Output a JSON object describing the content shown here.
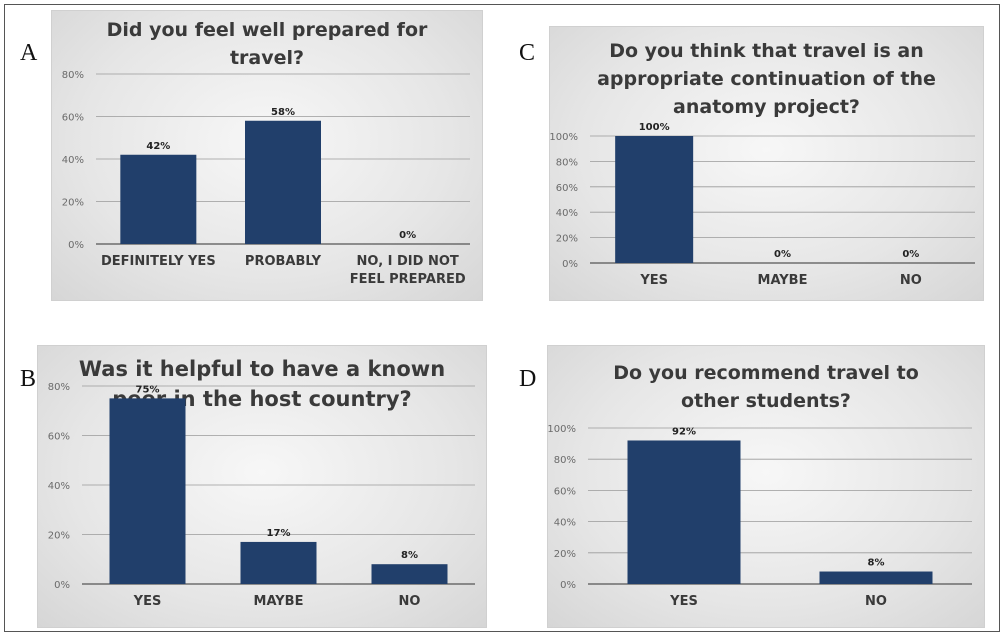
{
  "panel_letters": [
    "A",
    "C",
    "B",
    "D"
  ],
  "colors": {
    "bar": "#213f6b",
    "grid": "#9a9a9a",
    "axis": "#555555"
  },
  "chart_data": [
    {
      "id": "A",
      "type": "bar",
      "title": [
        "Did you feel well prepared for",
        "travel?"
      ],
      "categories": [
        [
          "DEFINITELY YES"
        ],
        [
          "PROBABLY"
        ],
        [
          "NO, I DID NOT",
          "FEEL PREPARED"
        ]
      ],
      "values": [
        42,
        58,
        0
      ],
      "value_labels": [
        "42%",
        "58%",
        "0%"
      ],
      "yticks": [
        "0%",
        "20%",
        "40%",
        "60%",
        "80%"
      ],
      "ylim": [
        0,
        80
      ],
      "grid": true
    },
    {
      "id": "C",
      "type": "bar",
      "title": [
        "Do you think that travel is an",
        "appropriate continuation of the",
        "anatomy project?"
      ],
      "categories": [
        [
          "YES"
        ],
        [
          "MAYBE"
        ],
        [
          "NO"
        ]
      ],
      "values": [
        100,
        0,
        0
      ],
      "value_labels": [
        "100%",
        "0%",
        "0%"
      ],
      "yticks": [
        "0%",
        "20%",
        "40%",
        "60%",
        "80%",
        "100%"
      ],
      "ylim": [
        0,
        100
      ],
      "grid": true
    },
    {
      "id": "B",
      "type": "bar",
      "title": [
        "Was it helpful to have a known",
        "peer in the host country?"
      ],
      "categories": [
        [
          "YES"
        ],
        [
          "MAYBE"
        ],
        [
          "NO"
        ]
      ],
      "values": [
        75,
        17,
        8
      ],
      "value_labels": [
        "75%",
        "17%",
        "8%"
      ],
      "yticks": [
        "0%",
        "20%",
        "40%",
        "60%",
        "80%"
      ],
      "ylim": [
        0,
        80
      ],
      "grid": true
    },
    {
      "id": "D",
      "type": "bar",
      "title": [
        "Do you recommend travel to",
        "other students?"
      ],
      "categories": [
        [
          "YES"
        ],
        [
          "NO"
        ]
      ],
      "values": [
        92,
        8
      ],
      "value_labels": [
        "92%",
        "8%"
      ],
      "yticks": [
        "0%",
        "20%",
        "40%",
        "60%",
        "80%",
        "100%"
      ],
      "ylim": [
        0,
        100
      ],
      "grid": true
    }
  ]
}
